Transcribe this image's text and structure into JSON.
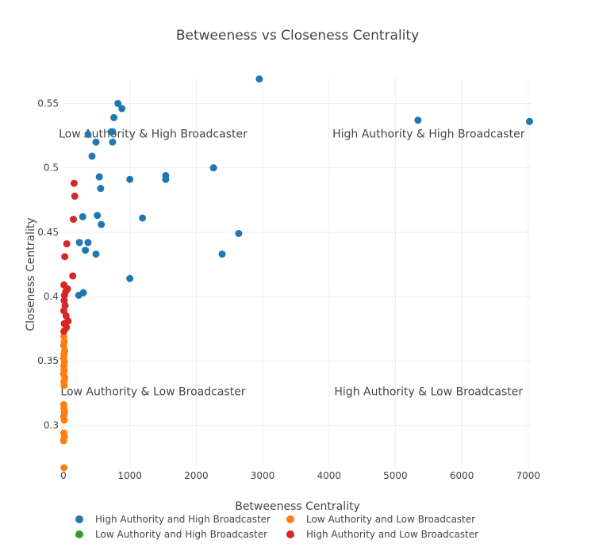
{
  "chart_data": {
    "type": "scatter",
    "title": "Betweeness vs Closeness Centrality",
    "xlabel": "Betweeness Centrality",
    "ylabel": "Closeness Centrality",
    "xlim": [
      0,
      7050
    ],
    "ylim": [
      0.267,
      0.57
    ],
    "x_ticks": [
      0,
      1000,
      2000,
      3000,
      4000,
      5000,
      6000,
      7000
    ],
    "x_tick_labels": [
      "0",
      "1000",
      "2000",
      "3000",
      "4000",
      "5000",
      "6000",
      "7000"
    ],
    "y_ticks": [
      0.3,
      0.35,
      0.4,
      0.45,
      0.5,
      0.55
    ],
    "y_tick_labels": [
      "0.3",
      "0.35",
      "0.4",
      "0.45",
      "0.5",
      "0.55"
    ],
    "grid": true,
    "legend_position": "bottom",
    "annotations": [
      {
        "text": "Low Authority & High Broadcaster",
        "x": 1350,
        "y": 0.5235
      },
      {
        "text": "High Authority & High Broadcaster",
        "x": 5500,
        "y": 0.5235
      },
      {
        "text": "Low Authority & Low Broadcaster",
        "x": 1350,
        "y": 0.3235
      },
      {
        "text": "High Authority & Low Broadcaster",
        "x": 5500,
        "y": 0.3235
      }
    ],
    "series": [
      {
        "name": "High Authority and High Broadcaster",
        "color": "#1f77b4",
        "points": [
          [
            2950,
            0.569
          ],
          [
            5340,
            0.537
          ],
          [
            7020,
            0.536
          ],
          [
            820,
            0.55
          ],
          [
            880,
            0.546
          ],
          [
            760,
            0.539
          ],
          [
            370,
            0.526
          ],
          [
            740,
            0.528
          ],
          [
            720,
            0.528
          ],
          [
            490,
            0.52
          ],
          [
            740,
            0.52
          ],
          [
            430,
            0.509
          ],
          [
            2260,
            0.5
          ],
          [
            1540,
            0.494
          ],
          [
            540,
            0.493
          ],
          [
            1000,
            0.491
          ],
          [
            1540,
            0.491
          ],
          [
            560,
            0.484
          ],
          [
            510,
            0.463
          ],
          [
            290,
            0.462
          ],
          [
            1190,
            0.461
          ],
          [
            570,
            0.456
          ],
          [
            2640,
            0.449
          ],
          [
            240,
            0.442
          ],
          [
            370,
            0.442
          ],
          [
            330,
            0.436
          ],
          [
            490,
            0.433
          ],
          [
            2390,
            0.433
          ],
          [
            1000,
            0.414
          ],
          [
            300,
            0.403
          ],
          [
            230,
            0.401
          ]
        ]
      },
      {
        "name": "Low Authority and Low Broadcaster",
        "color": "#ff7f0e",
        "points": [
          [
            5,
            0.369
          ],
          [
            12,
            0.365
          ],
          [
            4,
            0.362
          ],
          [
            18,
            0.358
          ],
          [
            8,
            0.355
          ],
          [
            3,
            0.352
          ],
          [
            15,
            0.349
          ],
          [
            6,
            0.346
          ],
          [
            10,
            0.343
          ],
          [
            2,
            0.34
          ],
          [
            20,
            0.337
          ],
          [
            7,
            0.334
          ],
          [
            12,
            0.331
          ],
          [
            4,
            0.316
          ],
          [
            9,
            0.313
          ],
          [
            15,
            0.31
          ],
          [
            3,
            0.307
          ],
          [
            11,
            0.304
          ],
          [
            6,
            0.294
          ],
          [
            14,
            0.291
          ],
          [
            2,
            0.288
          ],
          [
            8,
            0.267
          ]
        ]
      },
      {
        "name": "Low Authority and High Broadcaster",
        "color": "#2ca02c",
        "points": []
      },
      {
        "name": "High Authority and Low Broadcaster",
        "color": "#d62728",
        "points": [
          [
            160,
            0.488
          ],
          [
            170,
            0.478
          ],
          [
            150,
            0.46
          ],
          [
            50,
            0.441
          ],
          [
            20,
            0.431
          ],
          [
            140,
            0.416
          ],
          [
            8,
            0.409
          ],
          [
            60,
            0.406
          ],
          [
            35,
            0.404
          ],
          [
            15,
            0.401
          ],
          [
            10,
            0.397
          ],
          [
            25,
            0.393
          ],
          [
            5,
            0.389
          ],
          [
            40,
            0.385
          ],
          [
            70,
            0.381
          ],
          [
            12,
            0.379
          ],
          [
            45,
            0.376
          ],
          [
            6,
            0.373
          ]
        ]
      }
    ]
  }
}
